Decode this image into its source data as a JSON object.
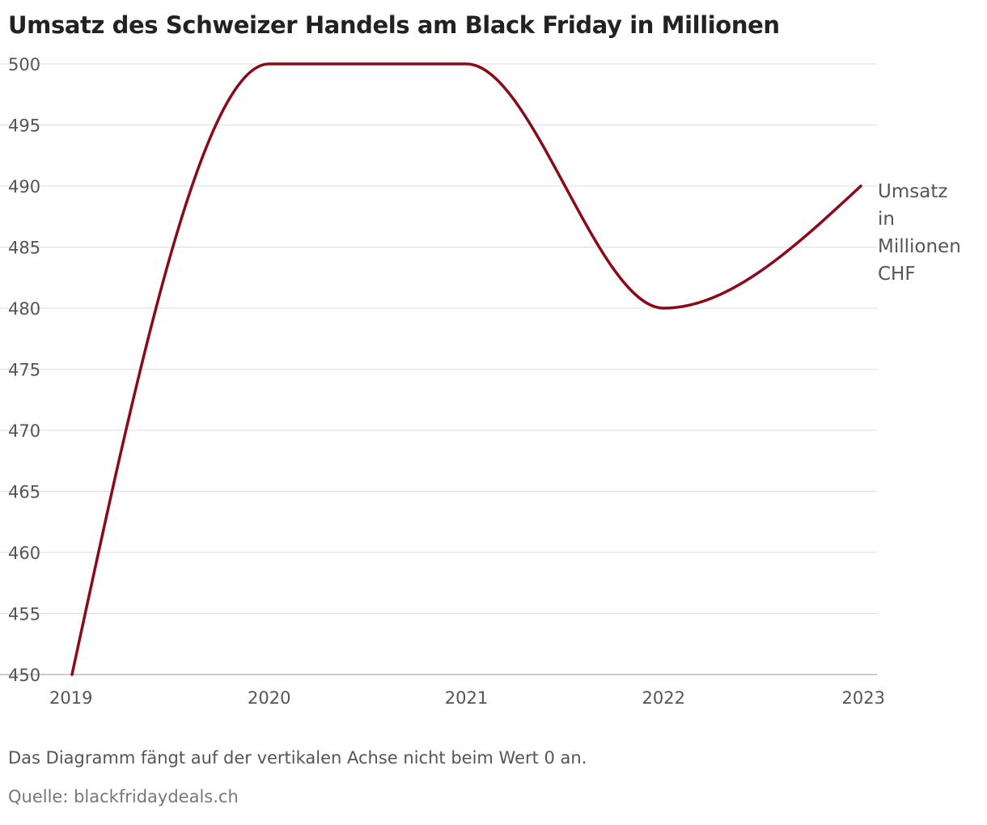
{
  "chart_data": {
    "type": "line",
    "title": "Umsatz des Schweizer Handels am Black Friday in Millionen",
    "x": [
      "2019",
      "2020",
      "2021",
      "2022",
      "2023"
    ],
    "series": [
      {
        "name": "Umsatz in Millionen CHF",
        "label_lines": [
          "Umsatz",
          "in",
          "Millionen",
          "CHF"
        ],
        "values": [
          450,
          500,
          500,
          480,
          490
        ]
      }
    ],
    "ylim": [
      450,
      500
    ],
    "yticks": [
      450,
      455,
      460,
      465,
      470,
      475,
      480,
      485,
      490,
      495,
      500
    ],
    "grid": true,
    "line_color": "#8b0a1a",
    "note": "Das Diagramm fängt auf der vertikalen Achse nicht beim Wert 0 an.",
    "source": "Quelle: blackfridaydeals.ch"
  }
}
